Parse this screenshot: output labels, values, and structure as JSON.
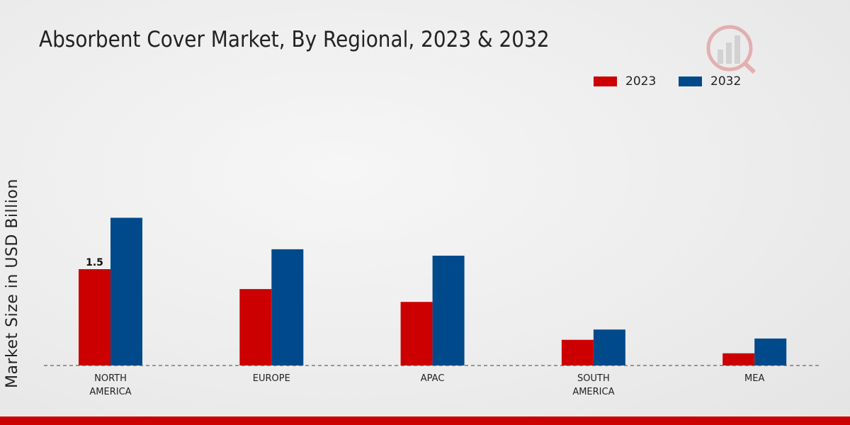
{
  "chart_data": {
    "type": "bar",
    "title": "Absorbent Cover Market, By Regional, 2023 & 2032",
    "ylabel": "Market Size in USD Billion",
    "xlabel": "",
    "categories": [
      "NORTH AMERICA",
      "EUROPE",
      "APAC",
      "SOUTH AMERICA",
      "MEA"
    ],
    "category_lines": [
      [
        "NORTH",
        "AMERICA"
      ],
      [
        "EUROPE"
      ],
      [
        "APAC"
      ],
      [
        "SOUTH",
        "AMERICA"
      ],
      [
        "MEA"
      ]
    ],
    "series": [
      {
        "name": "2023",
        "color": "#cc0000",
        "values": [
          1.5,
          1.19,
          0.99,
          0.4,
          0.19
        ]
      },
      {
        "name": "2032",
        "color": "#004a8c",
        "values": [
          2.3,
          1.81,
          1.71,
          0.56,
          0.42
        ]
      }
    ],
    "data_labels": [
      {
        "series": 0,
        "category": 0,
        "text": "1.5"
      }
    ],
    "legend_position": "top-right",
    "grid": false
  }
}
